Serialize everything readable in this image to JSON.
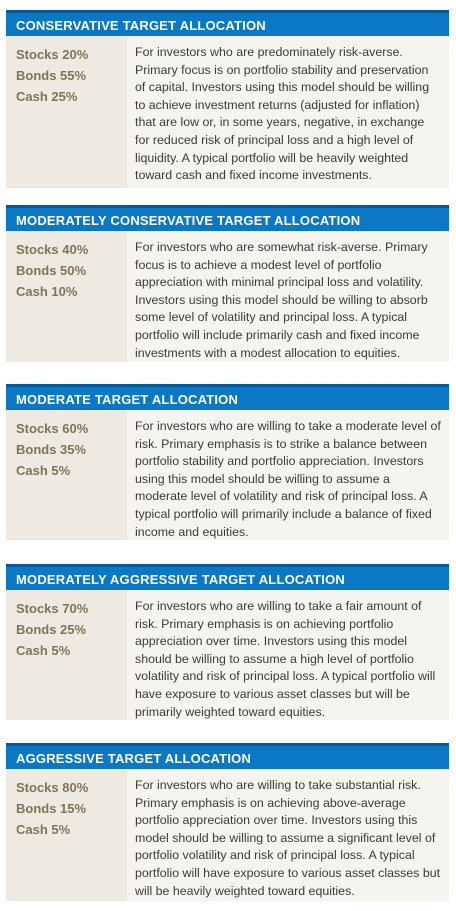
{
  "allocations": [
    {
      "title": "CONSERVATIVE TARGET ALLOCATION",
      "stocks": "Stocks 20%",
      "bonds": "Bonds 55%",
      "cash": "Cash 25%",
      "description": "For investors who are predominately risk-averse. Primary focus is on portfolio stability and preservation of capital. Investors using this model should be willing to achieve investment returns (adjusted for inflation) that are low or, in some years, negative, in exchange for reduced risk of principal loss and a high level of liquidity. A typical portfolio will be heavily weighted toward cash and fixed income investments."
    },
    {
      "title": "MODERATELY CONSERVATIVE TARGET ALLOCATION",
      "stocks": "Stocks 40%",
      "bonds": "Bonds 50%",
      "cash": "Cash 10%",
      "description": "For investors who are somewhat risk-averse. Primary focus is to achieve a modest level of portfolio appreciation with minimal principal loss and volatility. Investors using this model should be willing to absorb some level of volatility and principal loss. A typical portfolio will include primarily cash and fixed income investments with a modest allocation to equities."
    },
    {
      "title": "MODERATE TARGET ALLOCATION",
      "stocks": "Stocks 60%",
      "bonds": "Bonds 35%",
      "cash": "Cash 5%",
      "description": "For investors who are willing to take a moderate level of risk. Primary emphasis is to strike a balance between portfolio stability and portfolio appreciation. Investors using this model should be willing to assume a moderate level of volatility and risk of principal loss. A typical portfolio will primarily include a balance of fixed income and equities."
    },
    {
      "title": "MODERATELY AGGRESSIVE TARGET ALLOCATION",
      "stocks": "Stocks 70%",
      "bonds": "Bonds 25%",
      "cash": "Cash 5%",
      "description": "For investors who are willing to take a fair amount of risk. Primary emphasis is on achieving portfolio appreciation over time. Investors using this model should be willing to assume a high level of portfolio volatility and risk of principal loss. A typical portfolio will have exposure to various asset classes but will be primarily weighted toward equities."
    },
    {
      "title": "AGGRESSIVE TARGET ALLOCATION",
      "stocks": "Stocks 80%",
      "bonds": "Bonds 15%",
      "cash": "Cash 5%",
      "description": "For investors who are willing to take substantial risk. Primary emphasis is on achieving above-average portfolio appreciation over time. Investors using this model should be willing to assume a significant level of portfolio volatility and risk of principal loss. A typical portfolio will have exposure to various asset classes but will be heavily weighted toward equities."
    }
  ],
  "colors": {
    "header_bg": "#0a78c4",
    "header_border": "#04599a",
    "allocation_text": "#7f7459",
    "allocation_bg": "#eeeae1",
    "description_bg": "#f6f4ef"
  }
}
